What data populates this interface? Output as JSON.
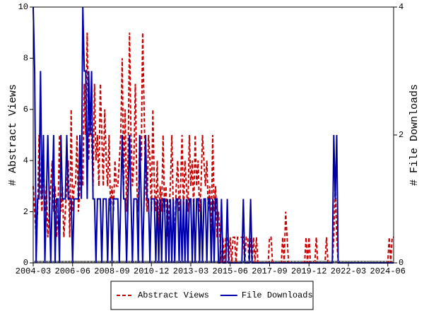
{
  "chart_data": {
    "type": "line",
    "ylabel": "# Abstract Views",
    "y2label": "# File Downloads",
    "ylim": [
      0,
      10
    ],
    "yticks": [
      0,
      2,
      4,
      6,
      8,
      10
    ],
    "y2lim": [
      0,
      4
    ],
    "y2ticks": [
      0,
      2,
      4
    ],
    "xticks": [
      "2004-03",
      "2006-06",
      "2008-09",
      "2010-12",
      "2013-03",
      "2015-06",
      "2017-09",
      "2019-12",
      "2022-03",
      "2024-06"
    ],
    "legend": "bottom",
    "categories": [
      "2004-03",
      "2004-04",
      "2004-05",
      "2004-06",
      "2004-07",
      "2004-08",
      "2004-09",
      "2004-10",
      "2004-11",
      "2004-12",
      "2005-01",
      "2005-02",
      "2005-03",
      "2005-04",
      "2005-05",
      "2005-06",
      "2005-07",
      "2005-08",
      "2005-09",
      "2005-10",
      "2005-11",
      "2005-12",
      "2006-01",
      "2006-02",
      "2006-03",
      "2006-04",
      "2006-05",
      "2006-06",
      "2006-07",
      "2006-08",
      "2006-09",
      "2006-10",
      "2006-11",
      "2006-12",
      "2007-01",
      "2007-02",
      "2007-03",
      "2007-04",
      "2007-05",
      "2007-06",
      "2007-07",
      "2007-08",
      "2007-09",
      "2007-10",
      "2007-11",
      "2007-12",
      "2008-01",
      "2008-02",
      "2008-03",
      "2008-04",
      "2008-05",
      "2008-06",
      "2008-07",
      "2008-08",
      "2008-09",
      "2008-10",
      "2008-11",
      "2008-12",
      "2009-01",
      "2009-02",
      "2009-03",
      "2009-04",
      "2009-05",
      "2009-06",
      "2009-07",
      "2009-08",
      "2009-09",
      "2009-10",
      "2009-11",
      "2009-12",
      "2010-01",
      "2010-02",
      "2010-03",
      "2010-04",
      "2010-05",
      "2010-06",
      "2010-07",
      "2010-08",
      "2010-09",
      "2010-10",
      "2010-11",
      "2010-12",
      "2011-01",
      "2011-02",
      "2011-03",
      "2011-04",
      "2011-05",
      "2011-06",
      "2011-07",
      "2011-08",
      "2011-09",
      "2011-10",
      "2011-11",
      "2011-12",
      "2012-01",
      "2012-02",
      "2012-03",
      "2012-04",
      "2012-05",
      "2012-06",
      "2012-07",
      "2012-08",
      "2012-09",
      "2012-10",
      "2012-11",
      "2012-12",
      "2013-01",
      "2013-02",
      "2013-03",
      "2013-04",
      "2013-05",
      "2013-06",
      "2013-07",
      "2013-08",
      "2013-09",
      "2013-10",
      "2013-11",
      "2013-12",
      "2014-01",
      "2014-02",
      "2014-03",
      "2014-04",
      "2014-05",
      "2014-06",
      "2014-07",
      "2014-08",
      "2014-09",
      "2014-10",
      "2014-11",
      "2014-12",
      "2015-01",
      "2015-02",
      "2015-03",
      "2015-04",
      "2015-05",
      "2015-06",
      "2015-07",
      "2015-08",
      "2015-09",
      "2015-10",
      "2015-11",
      "2015-12",
      "2016-01",
      "2016-02",
      "2016-03",
      "2016-04",
      "2016-05",
      "2016-06",
      "2016-07",
      "2016-08",
      "2016-09",
      "2016-10",
      "2016-11",
      "2016-12",
      "2017-01",
      "2017-02",
      "2017-03",
      "2017-04",
      "2017-05",
      "2017-06",
      "2017-07",
      "2017-08",
      "2017-09",
      "2017-10",
      "2017-11",
      "2017-12",
      "2018-01",
      "2018-02",
      "2018-03",
      "2018-04",
      "2018-05",
      "2018-06",
      "2018-07",
      "2018-08",
      "2018-09",
      "2018-10",
      "2018-11",
      "2018-12",
      "2019-01",
      "2019-02",
      "2019-03",
      "2019-04",
      "2019-05",
      "2019-06",
      "2019-07",
      "2019-08",
      "2019-09",
      "2019-10",
      "2019-11",
      "2019-12",
      "2020-01",
      "2020-02",
      "2020-03",
      "2020-04",
      "2020-05",
      "2020-06",
      "2020-07",
      "2020-08",
      "2020-09",
      "2020-10",
      "2020-11",
      "2020-12",
      "2021-01",
      "2021-02",
      "2021-03",
      "2021-04",
      "2021-05",
      "2021-06",
      "2021-07",
      "2021-08",
      "2021-09",
      "2021-10",
      "2021-11",
      "2021-12",
      "2022-01",
      "2022-02",
      "2022-03",
      "2022-04",
      "2022-05",
      "2022-06",
      "2022-07",
      "2022-08",
      "2022-09",
      "2022-10",
      "2022-11",
      "2022-12",
      "2023-01",
      "2023-02",
      "2023-03",
      "2023-04",
      "2023-05",
      "2023-06",
      "2023-07",
      "2023-08",
      "2023-09",
      "2023-10",
      "2023-11",
      "2023-12",
      "2024-01",
      "2024-02",
      "2024-03",
      "2024-04",
      "2024-05",
      "2024-06",
      "2024-07",
      "2024-08",
      "2024-09",
      "2024-10"
    ],
    "series": [
      {
        "name": "Abstract Views",
        "color": "#cc0000",
        "dash": true,
        "values": [
          3,
          2,
          1,
          2,
          5,
          3,
          2,
          4,
          2,
          3,
          1,
          2,
          3,
          4,
          2,
          3,
          1,
          2,
          5,
          2,
          3,
          1,
          2,
          3,
          4,
          1,
          6,
          2,
          3,
          3,
          5,
          2,
          3,
          4,
          3,
          7,
          5,
          9,
          4,
          6,
          5,
          3,
          7,
          4,
          5,
          3,
          7,
          5,
          3,
          6,
          4,
          3,
          5,
          2,
          3,
          2,
          4,
          3,
          3,
          4,
          5,
          8,
          3,
          6,
          2,
          4,
          9,
          5,
          3,
          4,
          7,
          3,
          2,
          5,
          4,
          9,
          6,
          3,
          2,
          5,
          4,
          2,
          6,
          3,
          2,
          4,
          1,
          3,
          2,
          5,
          2,
          3,
          1,
          2,
          3,
          5,
          2,
          1,
          3,
          4,
          2,
          3,
          5,
          2,
          4,
          3,
          2,
          5,
          3,
          4,
          2,
          5,
          3,
          4,
          2,
          3,
          5,
          4,
          3,
          4,
          2,
          3,
          1,
          5,
          2,
          3,
          1,
          2,
          1,
          0,
          1,
          0,
          1,
          1,
          0,
          1,
          0,
          1,
          1,
          0,
          1,
          1,
          1,
          1,
          1,
          0,
          1,
          1,
          0,
          1,
          0,
          1,
          0,
          1,
          0,
          0,
          0,
          0,
          0,
          0,
          0,
          0,
          1,
          1,
          0,
          0,
          0,
          0,
          0,
          0,
          0,
          1,
          0,
          2,
          1,
          0,
          0,
          0,
          0,
          0,
          0,
          0,
          0,
          0,
          0,
          0,
          0,
          1,
          0,
          1,
          0,
          0,
          0,
          0,
          1,
          0,
          0,
          0,
          0,
          0,
          0,
          1,
          0,
          0,
          0,
          0,
          1,
          3,
          1,
          0,
          0,
          0,
          0,
          0,
          0,
          0,
          0,
          0,
          0,
          0,
          0,
          0,
          0,
          0,
          0,
          0,
          0,
          0,
          0,
          0,
          0,
          0,
          0,
          0,
          0,
          0,
          0,
          0,
          0,
          0,
          0,
          0,
          0,
          0,
          1,
          0,
          1,
          1
        ]
      },
      {
        "name": "File Downloads",
        "color": "#0000aa",
        "axis": "y2",
        "values": [
          4,
          3,
          0,
          1,
          1,
          3,
          1,
          2,
          0,
          1,
          2,
          1,
          0,
          1,
          2,
          0,
          1,
          1,
          0,
          2,
          1,
          1,
          1,
          2,
          1,
          1,
          1,
          0,
          1,
          1,
          1,
          1,
          2,
          1,
          4,
          3,
          3,
          1,
          3,
          2,
          3,
          1,
          1,
          0,
          1,
          1,
          1,
          0,
          1,
          1,
          1,
          0,
          1,
          1,
          0,
          1,
          1,
          1,
          1,
          0,
          1,
          2,
          1,
          1,
          0,
          1,
          2,
          1,
          0,
          1,
          1,
          1,
          0,
          2,
          1,
          0,
          1,
          2,
          1,
          1,
          0,
          1,
          1,
          1,
          0,
          1,
          0,
          1,
          0,
          1,
          1,
          0,
          1,
          0,
          1,
          0,
          1,
          0,
          1,
          1,
          0,
          1,
          0,
          1,
          0,
          1,
          0,
          1,
          1,
          0,
          1,
          0,
          1,
          1,
          0,
          1,
          0,
          1,
          1,
          0,
          1,
          1,
          0,
          1,
          0,
          1,
          1,
          0,
          0,
          1,
          0,
          0,
          0,
          1,
          0,
          0,
          0,
          0,
          0,
          0,
          0,
          0,
          0,
          0,
          1,
          0,
          0,
          0,
          0,
          1,
          0,
          0,
          0,
          0,
          0,
          0,
          0,
          0,
          0,
          0,
          0,
          0,
          0,
          0,
          0,
          0,
          0,
          0,
          0,
          0,
          0,
          0,
          0,
          0,
          0,
          0,
          0,
          0,
          0,
          0,
          0,
          0,
          0,
          0,
          0,
          0,
          0,
          0,
          0,
          0,
          0,
          0,
          0,
          0,
          0,
          0,
          0,
          0,
          0,
          0,
          0,
          0,
          0,
          0,
          0,
          0,
          2,
          1,
          2,
          0,
          0,
          0,
          0,
          0,
          0,
          0,
          0,
          0,
          0,
          0,
          0,
          0,
          0,
          0,
          0,
          0,
          0,
          0,
          0,
          0,
          0,
          0,
          0,
          0,
          0,
          0,
          0,
          0,
          0,
          0,
          0,
          0,
          0,
          0,
          0,
          0,
          0,
          0
        ]
      }
    ]
  }
}
